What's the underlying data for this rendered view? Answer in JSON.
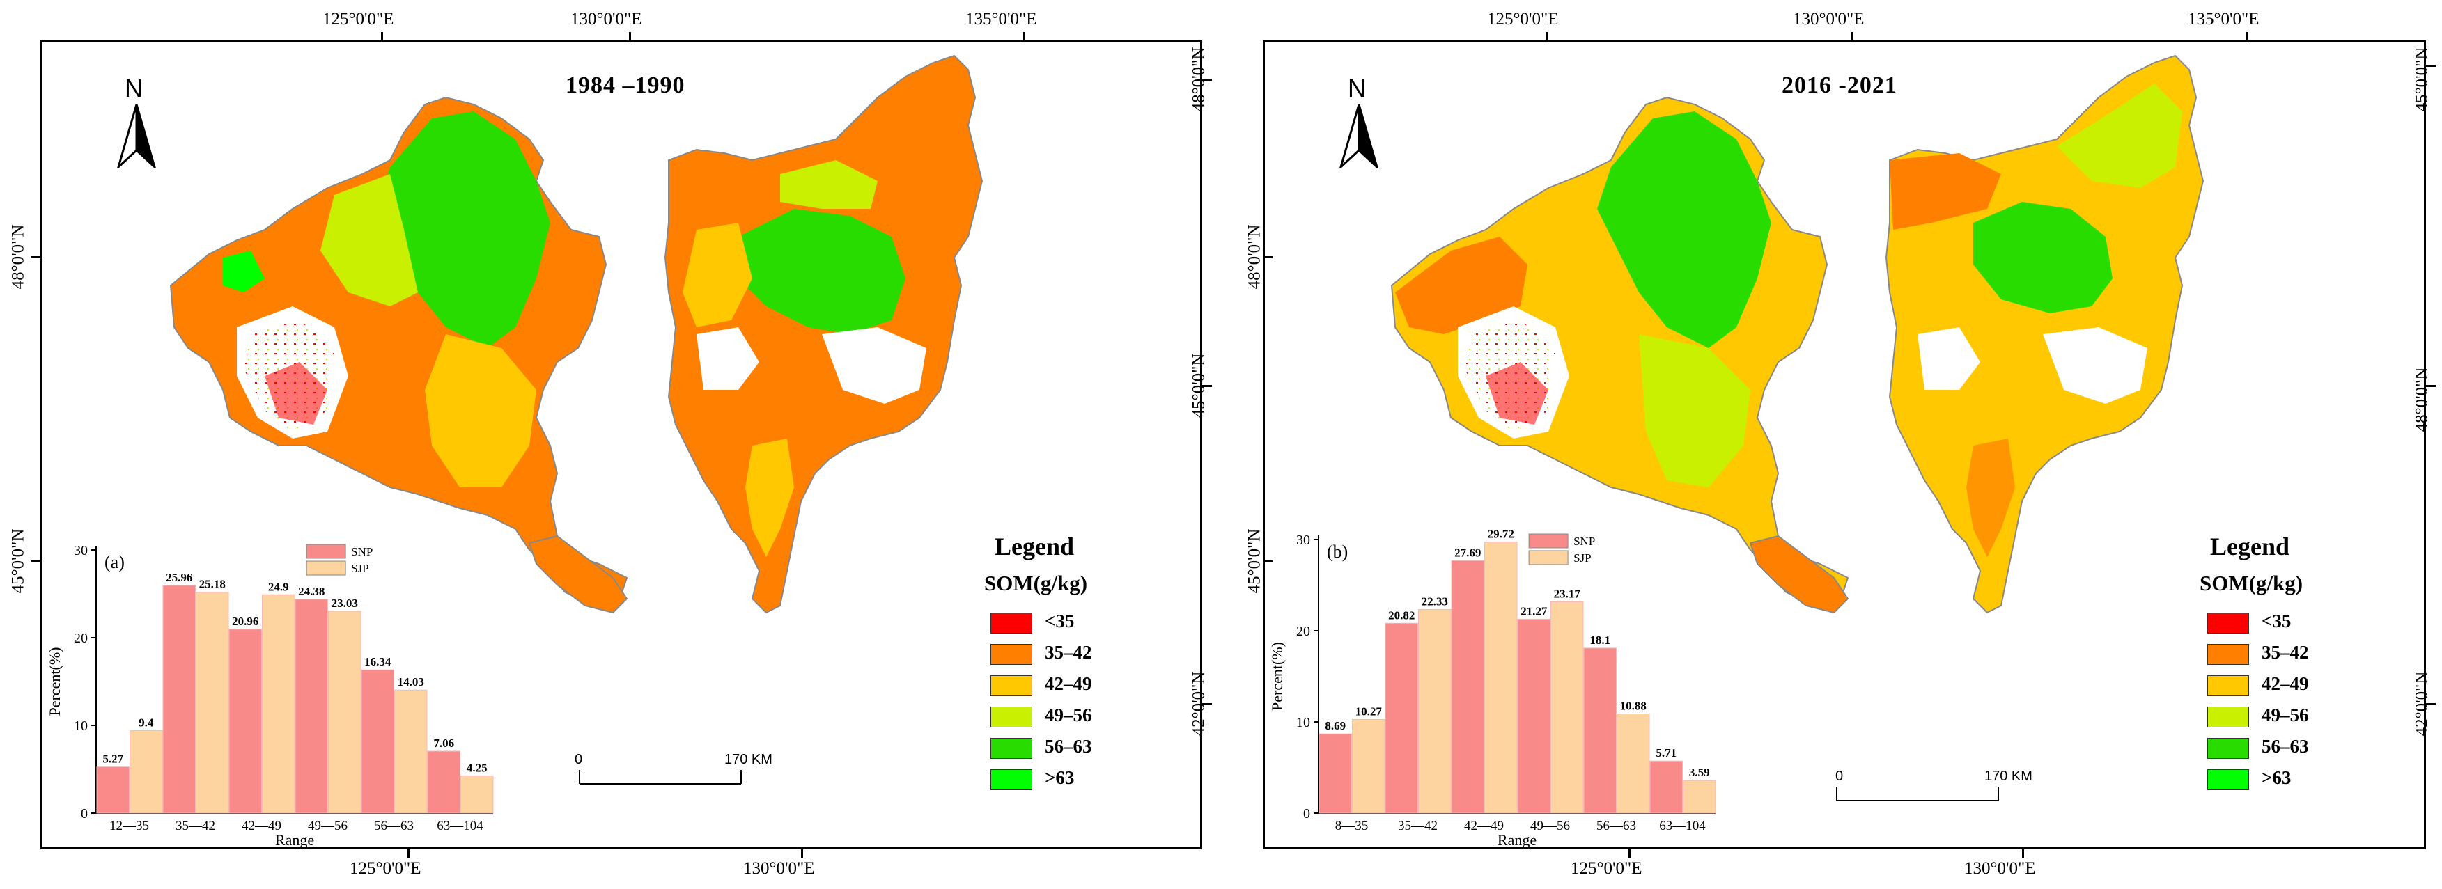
{
  "colors": {
    "lt35": "#ff0000",
    "c35_42": "#ff7f00",
    "c42_49": "#ffc800",
    "c49_56": "#c8f000",
    "c56_63": "#28dc00",
    "gt63": "#00ff00",
    "snp": "#f88a8a",
    "sjp": "#fdd39f"
  },
  "panels": [
    {
      "title": "1984 –1990",
      "top_ticks": [
        "125°0'0\"E",
        "130°0'0\"E",
        "135°0'0\"E"
      ],
      "bottom_ticks": [
        "125°0'0\"E",
        "130°0'0\"E"
      ],
      "left_ticks": [
        "48°0'0\"N",
        "45°0'0\"N"
      ],
      "right_ticks": [
        "48°0'0\"N",
        "45°0'0\"N",
        "42°0'0\"N"
      ],
      "north": "N",
      "scale_zero": "0",
      "scale_end": "170 KM",
      "legend": {
        "title": "Legend",
        "subtitle": "SOM(g/kg)",
        "items": [
          "<35",
          "35–42",
          "42–49",
          "49–56",
          "56–63",
          ">63"
        ]
      }
    },
    {
      "title": "2016  -2021",
      "top_ticks": [
        "125°0'0\"E",
        "130°0'0\"E",
        "135°0'0\"E"
      ],
      "bottom_ticks": [
        "125°0'0\"E",
        "130°0'0\"E"
      ],
      "left_ticks": [
        "48°0'0\"N",
        "45°0'0\"N"
      ],
      "right_ticks": [
        "48°0'0\"N",
        "45°0'0\"N",
        "42°0'0\"N"
      ],
      "north": "N",
      "scale_zero": "0",
      "scale_end": "170 KM",
      "legend": {
        "title": "Legend",
        "subtitle": "SOM(g/kg)",
        "items": [
          "<35",
          "35–42",
          "42–49",
          "49–56",
          "56–63",
          ">63"
        ]
      }
    }
  ],
  "chart_data": [
    {
      "type": "bar",
      "panel_label": "(a)",
      "categories": [
        "12—35",
        "35—42",
        "42—49",
        "49—56",
        "56—63",
        "63—104"
      ],
      "series": [
        {
          "name": "SNP",
          "values": [
            5.27,
            25.96,
            20.96,
            24.38,
            16.34,
            7.06
          ]
        },
        {
          "name": "SJP",
          "values": [
            9.4,
            25.18,
            24.9,
            23.03,
            14.03,
            4.25
          ]
        }
      ],
      "value_labels": {
        "SNP": [
          "5.27",
          "25.96",
          "20.96",
          "24.38",
          "16.34",
          "7.06"
        ],
        "SJP": [
          "9.4",
          "25.18",
          "24.9",
          "23.03",
          "14.03",
          "4.25"
        ]
      },
      "xlabel": "Range",
      "ylabel": "Percent(%)",
      "ylim": [
        0,
        30
      ],
      "yticks": [
        "0",
        "10",
        "20",
        "30"
      ],
      "legend": "top-right"
    },
    {
      "type": "bar",
      "panel_label": "(b)",
      "categories": [
        "8—35",
        "35—42",
        "42—49",
        "49—56",
        "56—63",
        "63—104"
      ],
      "series": [
        {
          "name": "SNP",
          "values": [
            8.69,
            20.82,
            27.69,
            21.27,
            18.1,
            5.71
          ]
        },
        {
          "name": "SJP",
          "values": [
            10.27,
            22.33,
            29.72,
            23.17,
            10.88,
            3.59
          ]
        }
      ],
      "value_labels": {
        "SNP": [
          "8.69",
          "20.82",
          "27.69",
          "21.27",
          "18.1",
          "5.71"
        ],
        "SJP": [
          "10.27",
          "22.33",
          "29.72",
          "23.17",
          "10.88",
          "3.59"
        ]
      },
      "xlabel": "Range",
      "ylabel": "Percent(%)",
      "ylim": [
        0,
        30
      ],
      "yticks": [
        "0",
        "10",
        "20",
        "30"
      ],
      "legend": "top-right"
    }
  ]
}
